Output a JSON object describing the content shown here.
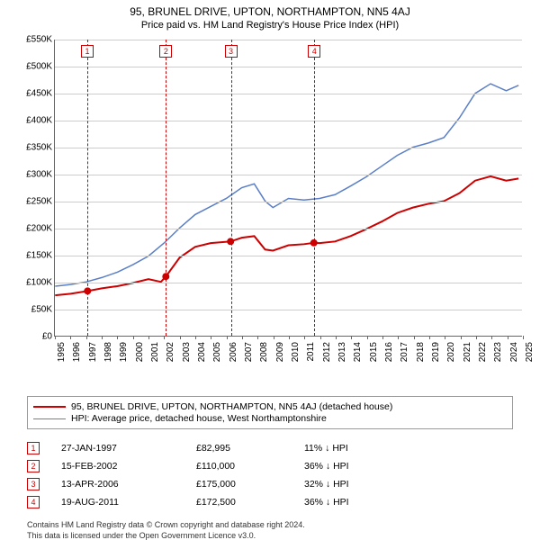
{
  "title1": "95, BRUNEL DRIVE, UPTON, NORTHAMPTON, NN5 4AJ",
  "title2": "Price paid vs. HM Land Registry's House Price Index (HPI)",
  "chart": {
    "type": "line",
    "background_color": "#ffffff",
    "grid_color": "#cccccc",
    "axis_color": "#666666",
    "xlim": [
      1995,
      2025
    ],
    "ylim": [
      0,
      550000
    ],
    "ytick_step": 50000,
    "ytick_labels": [
      "£0",
      "£50K",
      "£100K",
      "£150K",
      "£200K",
      "£250K",
      "£300K",
      "£350K",
      "£400K",
      "£450K",
      "£500K",
      "£550K"
    ],
    "xtick_step": 1,
    "xtick_labels": [
      "1995",
      "1996",
      "1997",
      "1998",
      "1999",
      "2000",
      "2001",
      "2002",
      "2003",
      "2004",
      "2005",
      "2006",
      "2007",
      "2008",
      "2009",
      "2010",
      "2011",
      "2012",
      "2013",
      "2014",
      "2015",
      "2016",
      "2017",
      "2018",
      "2019",
      "2020",
      "2021",
      "2022",
      "2023",
      "2024",
      "2025"
    ],
    "label_fontsize": 10,
    "series": [
      {
        "name": "property",
        "color": "#cc0000",
        "line_width": 2,
        "marker_color": "#cc0000",
        "marker_size": 4,
        "points": [
          [
            1995.0,
            75000
          ],
          [
            1996.0,
            78000
          ],
          [
            1997.08,
            82995
          ],
          [
            1998.0,
            88000
          ],
          [
            1999.0,
            92000
          ],
          [
            2000.0,
            98000
          ],
          [
            2001.0,
            105000
          ],
          [
            2001.8,
            100000
          ],
          [
            2002.12,
            110000
          ],
          [
            2003.0,
            145000
          ],
          [
            2004.0,
            165000
          ],
          [
            2005.0,
            172000
          ],
          [
            2006.28,
            175000
          ],
          [
            2007.0,
            182000
          ],
          [
            2007.8,
            185000
          ],
          [
            2008.5,
            160000
          ],
          [
            2009.0,
            158000
          ],
          [
            2010.0,
            168000
          ],
          [
            2011.0,
            170000
          ],
          [
            2011.63,
            172500
          ],
          [
            2012.0,
            172000
          ],
          [
            2013.0,
            175000
          ],
          [
            2014.0,
            185000
          ],
          [
            2015.0,
            198000
          ],
          [
            2016.0,
            212000
          ],
          [
            2017.0,
            228000
          ],
          [
            2018.0,
            238000
          ],
          [
            2019.0,
            245000
          ],
          [
            2020.0,
            250000
          ],
          [
            2021.0,
            265000
          ],
          [
            2022.0,
            288000
          ],
          [
            2023.0,
            296000
          ],
          [
            2024.0,
            288000
          ],
          [
            2024.8,
            292000
          ]
        ],
        "markers_at": [
          1997.08,
          2002.12,
          2006.28,
          2011.63
        ]
      },
      {
        "name": "hpi",
        "color": "#5b7fc7",
        "line_width": 1.5,
        "points": [
          [
            1995.0,
            92000
          ],
          [
            1996.0,
            95000
          ],
          [
            1997.0,
            100000
          ],
          [
            1998.0,
            108000
          ],
          [
            1999.0,
            118000
          ],
          [
            2000.0,
            132000
          ],
          [
            2001.0,
            148000
          ],
          [
            2002.0,
            172000
          ],
          [
            2003.0,
            200000
          ],
          [
            2004.0,
            225000
          ],
          [
            2005.0,
            240000
          ],
          [
            2006.0,
            255000
          ],
          [
            2007.0,
            275000
          ],
          [
            2007.8,
            282000
          ],
          [
            2008.5,
            250000
          ],
          [
            2009.0,
            238000
          ],
          [
            2010.0,
            255000
          ],
          [
            2011.0,
            252000
          ],
          [
            2012.0,
            255000
          ],
          [
            2013.0,
            262000
          ],
          [
            2014.0,
            278000
          ],
          [
            2015.0,
            295000
          ],
          [
            2016.0,
            315000
          ],
          [
            2017.0,
            335000
          ],
          [
            2018.0,
            350000
          ],
          [
            2019.0,
            358000
          ],
          [
            2020.0,
            368000
          ],
          [
            2021.0,
            405000
          ],
          [
            2022.0,
            450000
          ],
          [
            2023.0,
            468000
          ],
          [
            2024.0,
            455000
          ],
          [
            2024.8,
            465000
          ]
        ]
      }
    ],
    "events": [
      {
        "n": "1",
        "x": 1997.08
      },
      {
        "n": "2",
        "x": 2002.12
      },
      {
        "n": "3",
        "x": 2006.28
      },
      {
        "n": "4",
        "x": 2011.63
      }
    ]
  },
  "legend": {
    "items": [
      {
        "color": "#cc0000",
        "width": 2,
        "label": "95, BRUNEL DRIVE, UPTON, NORTHAMPTON, NN5 4AJ (detached house)"
      },
      {
        "color": "#5b7fc7",
        "width": 1.5,
        "label": "HPI: Average price, detached house, West Northamptonshire"
      }
    ]
  },
  "events_table": [
    {
      "n": "1",
      "date": "27-JAN-1997",
      "price": "£82,995",
      "stat": "11% ↓ HPI"
    },
    {
      "n": "2",
      "date": "15-FEB-2002",
      "price": "£110,000",
      "stat": "36% ↓ HPI"
    },
    {
      "n": "3",
      "date": "13-APR-2006",
      "price": "£175,000",
      "stat": "32% ↓ HPI"
    },
    {
      "n": "4",
      "date": "19-AUG-2011",
      "price": "£172,500",
      "stat": "36% ↓ HPI"
    }
  ],
  "footnote_l1": "Contains HM Land Registry data © Crown copyright and database right 2024.",
  "footnote_l2": "This data is licensed under the Open Government Licence v3.0."
}
